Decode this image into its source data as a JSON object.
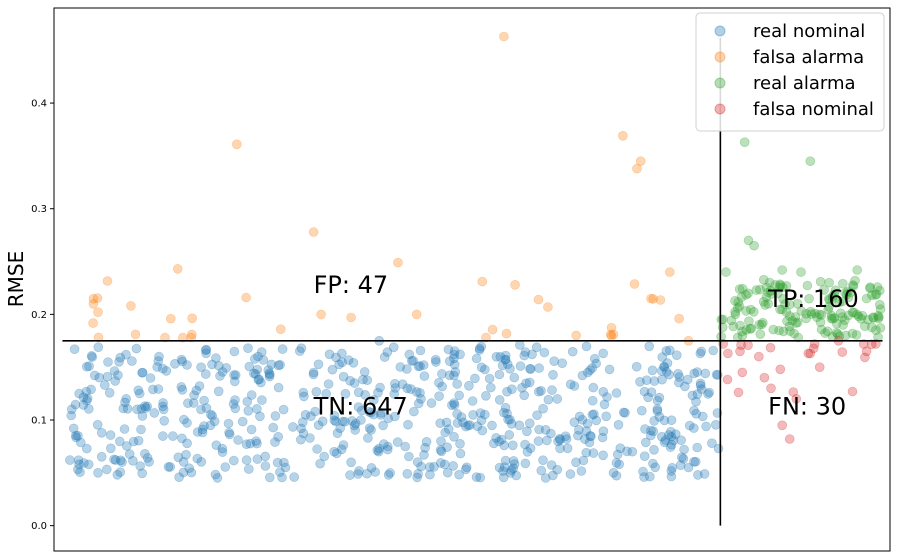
{
  "chart_data": {
    "type": "scatter",
    "ylabel": "RMSE",
    "ylim": [
      -0.024,
      0.49
    ],
    "yticks": [
      "0.0",
      "0.1",
      "0.2",
      "0.3",
      "0.4"
    ],
    "threshold": 0.175,
    "split_index": 694,
    "vline_ymax": 0.462,
    "grid": false,
    "legend_position": "top-right",
    "series": [
      {
        "name": "real nominal",
        "color": "#1f77b4",
        "count": 647,
        "points": [
          [
            5,
            0.167
          ],
          [
            40,
            0.141
          ],
          [
            95,
            0.16
          ],
          [
            140,
            0.15
          ],
          [
            190,
            0.168
          ],
          [
            260,
            0.145
          ],
          [
            330,
            0.175
          ],
          [
            410,
            0.162
          ],
          [
            480,
            0.171
          ],
          [
            560,
            0.158
          ],
          [
            640,
            0.166
          ],
          [
            690,
            0.143
          ],
          [
            0,
            0.062
          ],
          [
            20,
            0.058
          ],
          [
            30,
            0.05
          ],
          [
            60,
            0.12
          ],
          [
            80,
            0.068
          ],
          [
            100,
            0.11
          ],
          [
            150,
            0.095
          ],
          [
            200,
            0.063
          ],
          [
            230,
            0.055
          ],
          [
            300,
            0.06
          ],
          [
            340,
            0.048
          ],
          [
            360,
            0.13
          ],
          [
            400,
            0.058
          ],
          [
            440,
            0.09
          ],
          [
            470,
            0.05
          ],
          [
            500,
            0.08
          ],
          [
            520,
            0.12
          ],
          [
            540,
            0.06
          ],
          [
            580,
            0.05
          ],
          [
            600,
            0.07
          ],
          [
            620,
            0.09
          ],
          [
            660,
            0.055
          ],
          [
            670,
            0.048
          ],
          [
            685,
            0.078
          ],
          [
            692,
            0.073
          ]
        ]
      },
      {
        "name": "falsa alarma",
        "color": "#ff7f0e",
        "count": 47,
        "points": [
          [
            30,
            0.202
          ],
          [
            65,
            0.208
          ],
          [
            70,
            0.181
          ],
          [
            115,
            0.243
          ],
          [
            130,
            0.181
          ],
          [
            178,
            0.361
          ],
          [
            188,
            0.216
          ],
          [
            225,
            0.186
          ],
          [
            260,
            0.278
          ],
          [
            268,
            0.2
          ],
          [
            300,
            0.197
          ],
          [
            350,
            0.249
          ],
          [
            370,
            0.2
          ],
          [
            440,
            0.231
          ],
          [
            463,
            0.463
          ],
          [
            475,
            0.228
          ],
          [
            500,
            0.214
          ],
          [
            510,
            0.207
          ],
          [
            580,
            0.181
          ],
          [
            590,
            0.369
          ],
          [
            605,
            0.338
          ],
          [
            609,
            0.345
          ],
          [
            620,
            0.215
          ],
          [
            640,
            0.24
          ],
          [
            650,
            0.196
          ],
          [
            660,
            0.175
          ]
        ]
      },
      {
        "name": "real alarma",
        "color": "#2ca02c",
        "count": 160,
        "points": [
          [
            695,
            0.195
          ],
          [
            700,
            0.24
          ],
          [
            710,
            0.2
          ],
          [
            720,
            0.363
          ],
          [
            724,
            0.27
          ],
          [
            730,
            0.265
          ],
          [
            745,
            0.21
          ],
          [
            760,
            0.242
          ],
          [
            780,
            0.24
          ],
          [
            790,
            0.345
          ],
          [
            800,
            0.2
          ],
          [
            810,
            0.23
          ],
          [
            825,
            0.19
          ],
          [
            840,
            0.242
          ],
          [
            850,
            0.215
          ],
          [
            860,
            0.185
          ],
          [
            865,
            0.205
          ]
        ]
      },
      {
        "name": "falsa nominal",
        "color": "#d62728",
        "count": 30,
        "points": [
          [
            697,
            0.172
          ],
          [
            702,
            0.163
          ],
          [
            715,
            0.165
          ],
          [
            735,
            0.16
          ],
          [
            741,
            0.14
          ],
          [
            748,
            0.13
          ],
          [
            758,
            0.148
          ],
          [
            760,
            0.095
          ],
          [
            768,
            0.082
          ],
          [
            775,
            0.12
          ],
          [
            790,
            0.163
          ],
          [
            800,
            0.15
          ],
          [
            820,
            0.175
          ],
          [
            835,
            0.127
          ],
          [
            850,
            0.165
          ],
          [
            860,
            0.172
          ]
        ]
      }
    ],
    "annotations": [
      {
        "text": "FP: 47",
        "x": 260,
        "y": 0.22
      },
      {
        "text": "TP: 160",
        "x": 745,
        "y": 0.207
      },
      {
        "text": "TN: 647",
        "x": 260,
        "y": 0.105
      },
      {
        "text": "FN: 30",
        "x": 745,
        "y": 0.105
      }
    ]
  }
}
